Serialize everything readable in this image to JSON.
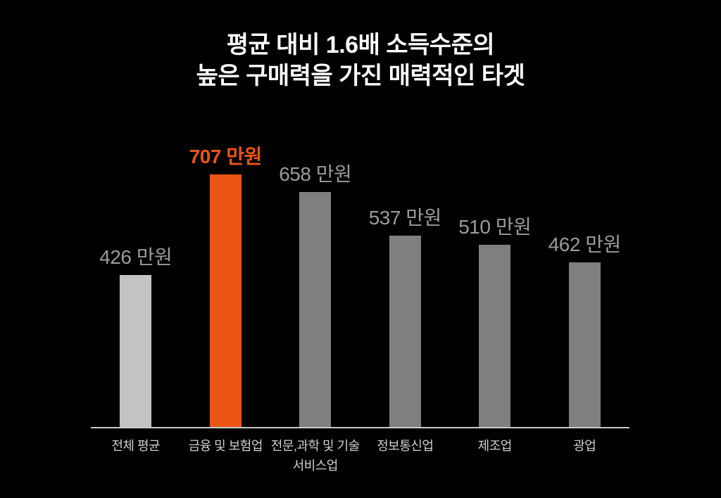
{
  "title": {
    "line1": "평균 대비 1.6배 소득수준의",
    "line2": "높은 구매력을 가진 매력적인 타겟"
  },
  "colors": {
    "background": "#000000",
    "title_text": "#ffffff",
    "highlight": "#ea5514",
    "bar_average": "#c3c3c3",
    "bar_default": "#7f7f7f",
    "value_label": "#9b9b9b",
    "category_label": "#cfcfcf",
    "axis_line": "#c9c9c9"
  },
  "chart_data": {
    "type": "bar",
    "title": "평균 대비 1.6배 소득수준의 높은 구매력을 가진 매력적인 타겟",
    "unit": "만원",
    "categories": [
      "전체 평균",
      "금융 및 보험업",
      "전문,과학 및 기술\n서비스업",
      "정보통신업",
      "제조업",
      "광업"
    ],
    "values": [
      426,
      707,
      658,
      537,
      510,
      462
    ],
    "value_labels": [
      "426 만원",
      "707 만원",
      "658 만원",
      "537 만원",
      "510 만원",
      "462 만원"
    ],
    "bar_colors": [
      "#c3c3c3",
      "#ea5514",
      "#7f7f7f",
      "#7f7f7f",
      "#7f7f7f",
      "#7f7f7f"
    ],
    "highlight_index": 1,
    "xlabel": "",
    "ylabel": "",
    "ylim": [
      0,
      707
    ],
    "grid": false,
    "legend": false
  }
}
